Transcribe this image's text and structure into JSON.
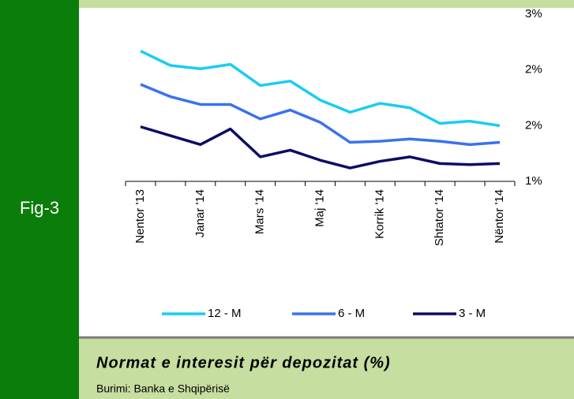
{
  "figure_label": "Fig-3",
  "chart_data": {
    "type": "line",
    "categories": [
      "Nentor '13",
      null,
      "Janar '14",
      null,
      "Mars '14",
      null,
      "Maj '14",
      null,
      "Korrik '14",
      null,
      "Shtator '14",
      null,
      "Nëntor '14"
    ],
    "series": [
      {
        "name": "12 - M",
        "color": "#19cdf2",
        "values": [
          2.17,
          2.04,
          2.01,
          2.05,
          1.86,
          1.9,
          1.73,
          1.62,
          1.7,
          1.66,
          1.52,
          1.54,
          1.5
        ]
      },
      {
        "name": "6 - M",
        "color": "#3a72ee",
        "values": [
          1.87,
          1.76,
          1.69,
          1.69,
          1.56,
          1.64,
          1.53,
          1.35,
          1.36,
          1.38,
          1.36,
          1.33,
          1.35
        ]
      },
      {
        "name": "3 - M",
        "color": "#0c0c66",
        "values": [
          1.49,
          1.41,
          1.33,
          1.47,
          1.22,
          1.28,
          1.19,
          1.12,
          1.18,
          1.22,
          1.16,
          1.15,
          1.16
        ]
      }
    ],
    "ylim": [
      1,
      2.5
    ],
    "yticks": [
      {
        "value": 1,
        "label": "1%"
      },
      {
        "value": 1.5,
        "label": "2%"
      },
      {
        "value": 2,
        "label": "2%"
      },
      {
        "value": 2.5,
        "label": "3%"
      }
    ],
    "legend": "bottom"
  },
  "caption": "Normat e interesit për depozitat (%)",
  "source": "Burimi: Banka e Shqipërisë"
}
